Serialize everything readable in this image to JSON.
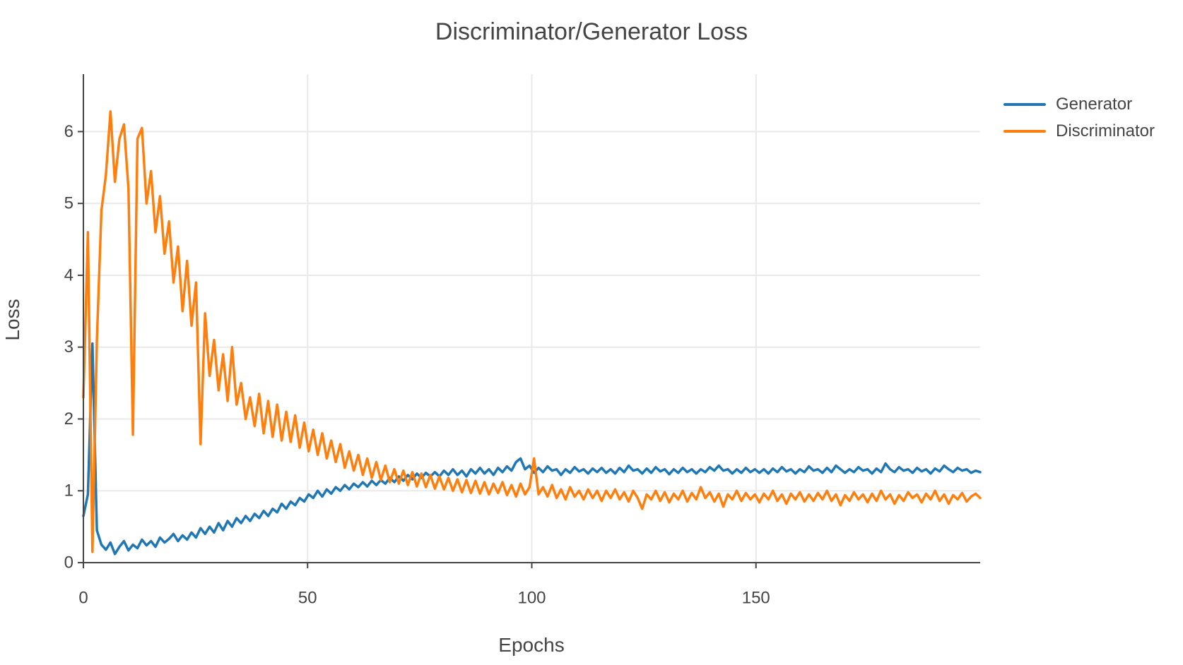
{
  "title": "Discriminator/Generator Loss",
  "legend": {
    "items": [
      {
        "label": "Generator",
        "color": "#1f77b4"
      },
      {
        "label": "Discriminator",
        "color": "#ff7f0e"
      }
    ]
  },
  "colors": {
    "text": "#444444",
    "axis_line": "#444444",
    "gridline": "#e9e9e9",
    "background": "#ffffff",
    "generator": "#1f77b4",
    "discriminator": "#ff7f0e"
  },
  "chart_data": {
    "type": "line",
    "title": "Discriminator/Generator Loss",
    "xlabel": "Epochs",
    "ylabel": "Loss",
    "xlim": [
      0,
      200
    ],
    "ylim": [
      0,
      6.8
    ],
    "x_ticks": [
      0,
      50,
      100,
      150
    ],
    "y_ticks": [
      0,
      1,
      2,
      3,
      4,
      5,
      6
    ],
    "grid": true,
    "legend_position": "right-top",
    "x_step": 1,
    "series": [
      {
        "name": "Generator",
        "color": "#1f77b4",
        "values": [
          0.65,
          0.95,
          3.05,
          0.45,
          0.25,
          0.18,
          0.28,
          0.12,
          0.22,
          0.3,
          0.17,
          0.25,
          0.2,
          0.32,
          0.24,
          0.3,
          0.22,
          0.35,
          0.28,
          0.33,
          0.4,
          0.3,
          0.38,
          0.32,
          0.42,
          0.35,
          0.48,
          0.4,
          0.5,
          0.42,
          0.55,
          0.45,
          0.58,
          0.5,
          0.62,
          0.55,
          0.65,
          0.58,
          0.68,
          0.62,
          0.72,
          0.65,
          0.75,
          0.7,
          0.82,
          0.75,
          0.85,
          0.8,
          0.9,
          0.85,
          0.95,
          0.9,
          1.0,
          0.92,
          1.02,
          0.96,
          1.05,
          1.0,
          1.08,
          1.02,
          1.1,
          1.05,
          1.12,
          1.06,
          1.14,
          1.08,
          1.15,
          1.1,
          1.18,
          1.12,
          1.2,
          1.14,
          1.22,
          1.16,
          1.24,
          1.18,
          1.25,
          1.2,
          1.26,
          1.2,
          1.28,
          1.22,
          1.3,
          1.22,
          1.28,
          1.2,
          1.3,
          1.24,
          1.32,
          1.24,
          1.3,
          1.22,
          1.32,
          1.26,
          1.34,
          1.28,
          1.4,
          1.45,
          1.3,
          1.35,
          1.25,
          1.32,
          1.26,
          1.34,
          1.28,
          1.3,
          1.22,
          1.3,
          1.25,
          1.33,
          1.27,
          1.3,
          1.24,
          1.31,
          1.26,
          1.32,
          1.25,
          1.3,
          1.24,
          1.32,
          1.26,
          1.35,
          1.28,
          1.3,
          1.24,
          1.31,
          1.25,
          1.33,
          1.27,
          1.3,
          1.23,
          1.3,
          1.25,
          1.32,
          1.26,
          1.3,
          1.24,
          1.3,
          1.26,
          1.33,
          1.28,
          1.35,
          1.28,
          1.3,
          1.24,
          1.3,
          1.25,
          1.32,
          1.26,
          1.3,
          1.25,
          1.3,
          1.24,
          1.31,
          1.26,
          1.33,
          1.27,
          1.3,
          1.24,
          1.3,
          1.26,
          1.34,
          1.28,
          1.3,
          1.25,
          1.32,
          1.26,
          1.35,
          1.3,
          1.25,
          1.3,
          1.26,
          1.33,
          1.28,
          1.3,
          1.24,
          1.31,
          1.26,
          1.38,
          1.3,
          1.26,
          1.33,
          1.28,
          1.3,
          1.25,
          1.32,
          1.27,
          1.3,
          1.24,
          1.31,
          1.27,
          1.35,
          1.3,
          1.26,
          1.32,
          1.28,
          1.3,
          1.25,
          1.28,
          1.26
        ]
      },
      {
        "name": "Discriminator",
        "color": "#ff7f0e",
        "values": [
          2.3,
          4.6,
          0.15,
          3.1,
          4.9,
          5.4,
          6.28,
          5.3,
          5.9,
          6.1,
          5.2,
          1.78,
          5.9,
          6.05,
          5.0,
          5.45,
          4.6,
          5.1,
          4.3,
          4.75,
          3.9,
          4.4,
          3.5,
          4.2,
          3.3,
          3.9,
          1.65,
          3.47,
          2.6,
          3.1,
          2.4,
          2.9,
          2.25,
          3.0,
          2.2,
          2.5,
          2.0,
          2.3,
          1.9,
          2.35,
          1.8,
          2.25,
          1.75,
          2.2,
          1.7,
          2.1,
          1.68,
          2.05,
          1.6,
          1.95,
          1.55,
          1.85,
          1.5,
          1.8,
          1.45,
          1.7,
          1.4,
          1.65,
          1.32,
          1.55,
          1.28,
          1.5,
          1.22,
          1.45,
          1.18,
          1.4,
          1.15,
          1.35,
          1.12,
          1.3,
          1.1,
          1.28,
          1.08,
          1.26,
          1.06,
          1.24,
          1.05,
          1.22,
          1.03,
          1.2,
          1.02,
          1.18,
          1.0,
          1.16,
          0.98,
          1.15,
          0.97,
          1.14,
          0.96,
          1.12,
          0.95,
          1.1,
          0.97,
          1.12,
          0.94,
          1.08,
          0.92,
          1.1,
          0.95,
          1.05,
          1.45,
          0.95,
          1.05,
          0.92,
          1.08,
          0.9,
          1.02,
          0.88,
          1.05,
          0.92,
          1.0,
          0.88,
          1.02,
          0.9,
          1.0,
          0.86,
          1.0,
          0.9,
          1.02,
          0.88,
          0.98,
          0.85,
          1.0,
          0.9,
          0.75,
          0.95,
          0.88,
          1.0,
          0.86,
          0.98,
          0.84,
          0.96,
          0.88,
          1.0,
          0.85,
          0.97,
          0.88,
          1.05,
          0.9,
          0.98,
          0.85,
          0.96,
          0.78,
          0.95,
          0.88,
          1.0,
          0.86,
          0.97,
          0.88,
          0.95,
          0.84,
          0.96,
          0.88,
          1.0,
          0.86,
          0.95,
          0.82,
          0.96,
          0.88,
          0.98,
          0.85,
          0.95,
          0.86,
          0.97,
          0.88,
          1.0,
          0.86,
          0.95,
          0.8,
          0.94,
          0.86,
          0.98,
          0.88,
          0.95,
          0.84,
          0.96,
          0.86,
          1.0,
          0.88,
          0.95,
          0.82,
          0.94,
          0.86,
          0.98,
          0.9,
          0.95,
          0.84,
          0.96,
          0.88,
          1.0,
          0.86,
          0.95,
          0.82,
          0.94,
          0.88,
          0.97,
          0.85,
          0.92,
          0.96,
          0.9
        ]
      }
    ]
  }
}
